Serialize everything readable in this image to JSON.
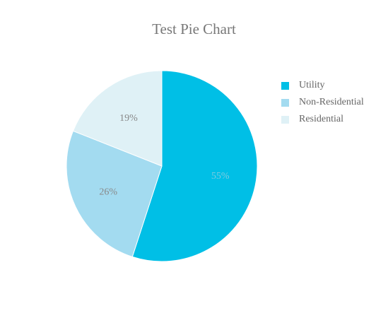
{
  "chart_data": {
    "type": "pie",
    "title": "Test Pie Chart",
    "categories": [
      "Utility",
      "Non-Residential",
      "Residential"
    ],
    "values": [
      55,
      26,
      19
    ],
    "value_labels": [
      "55%",
      "26%",
      "19%"
    ],
    "colors": [
      "#00bfe6",
      "#a3dbf0",
      "#dff1f6"
    ],
    "legend_position": "right",
    "start_angle": "top, clockwise"
  }
}
